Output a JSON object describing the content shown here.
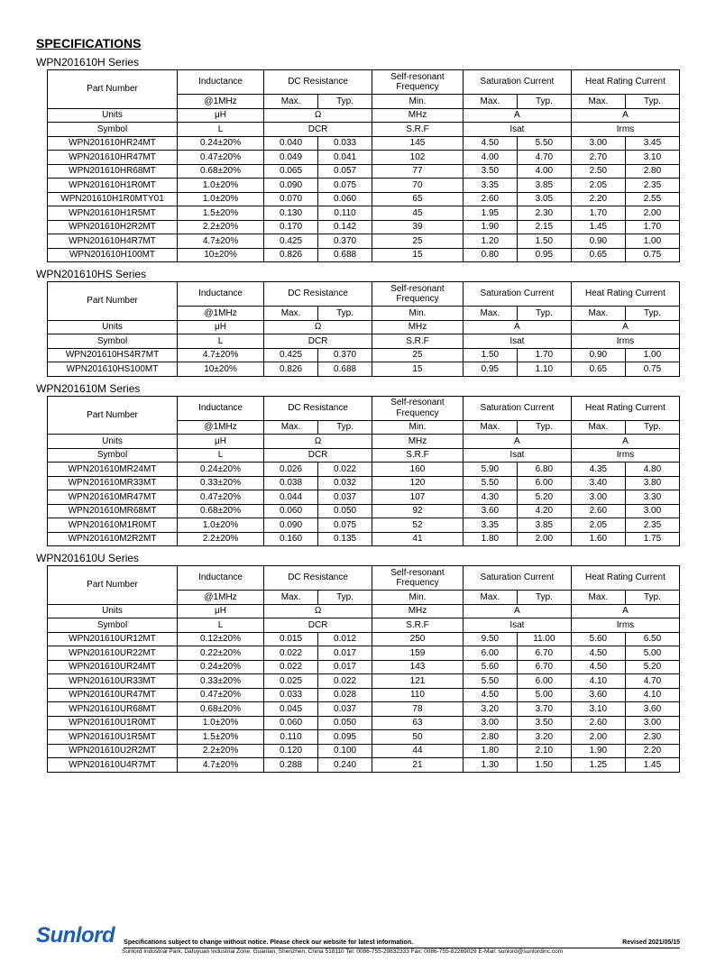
{
  "title": "SPECIFICATIONS",
  "headers": {
    "part_number": "Part Number",
    "inductance": "Inductance",
    "dc_res": "DC Resistance",
    "srf": "Self-resonant Frequency",
    "sat": "Saturation Current",
    "heat": "Heat Rating Current",
    "at1mhz": "@1MHz",
    "max": "Max.",
    "typ": "Typ.",
    "min": "Min.",
    "units": "Units",
    "uh": "μH",
    "ohm": "Ω",
    "mhz": "MHz",
    "a": "A",
    "symbol": "Symbol",
    "l": "L",
    "dcr": "DCR",
    "srf_sym": "S.R.F",
    "isat": "Isat",
    "irms": "Irms"
  },
  "series": [
    {
      "title": "WPN201610H Series",
      "rows": [
        [
          "WPN201610HR24MT",
          "0.24±20%",
          "0.040",
          "0.033",
          "145",
          "4.50",
          "5.50",
          "3.00",
          "3.45"
        ],
        [
          "WPN201610HR47MT",
          "0.47±20%",
          "0.049",
          "0.041",
          "102",
          "4.00",
          "4.70",
          "2.70",
          "3.10"
        ],
        [
          "WPN201610HR68MT",
          "0.68±20%",
          "0.065",
          "0.057",
          "77",
          "3.50",
          "4.00",
          "2.50",
          "2.80"
        ],
        [
          "WPN201610H1R0MT",
          "1.0±20%",
          "0.090",
          "0.075",
          "70",
          "3.35",
          "3.85",
          "2.05",
          "2.35"
        ],
        [
          "WPN201610H1R0MTY01",
          "1.0±20%",
          "0.070",
          "0.060",
          "65",
          "2.60",
          "3.05",
          "2.20",
          "2.55"
        ],
        [
          "WPN201610H1R5MT",
          "1.5±20%",
          "0.130",
          "0.110",
          "45",
          "1.95",
          "2.30",
          "1.70",
          "2.00"
        ],
        [
          "WPN201610H2R2MT",
          "2.2±20%",
          "0.170",
          "0.142",
          "39",
          "1.90",
          "2.15",
          "1.45",
          "1.70"
        ],
        [
          "WPN201610H4R7MT",
          "4.7±20%",
          "0.425",
          "0.370",
          "25",
          "1.20",
          "1.50",
          "0.90",
          "1.00"
        ],
        [
          "WPN201610H100MT",
          "10±20%",
          "0.826",
          "0.688",
          "15",
          "0.80",
          "0.95",
          "0.65",
          "0.75"
        ]
      ]
    },
    {
      "title": "WPN201610HS Series",
      "rows": [
        [
          "WPN201610HS4R7MT",
          "4.7±20%",
          "0.425",
          "0.370",
          "25",
          "1.50",
          "1.70",
          "0.90",
          "1.00"
        ],
        [
          "WPN201610HS100MT",
          "10±20%",
          "0.826",
          "0.688",
          "15",
          "0.95",
          "1.10",
          "0.65",
          "0.75"
        ]
      ]
    },
    {
      "title": "WPN201610M Series",
      "rows": [
        [
          "WPN201610MR24MT",
          "0.24±20%",
          "0.026",
          "0.022",
          "160",
          "5.90",
          "6.80",
          "4.35",
          "4.80"
        ],
        [
          "WPN201610MR33MT",
          "0.33±20%",
          "0.038",
          "0.032",
          "120",
          "5.50",
          "6.00",
          "3.40",
          "3.80"
        ],
        [
          "WPN201610MR47MT",
          "0.47±20%",
          "0.044",
          "0.037",
          "107",
          "4.30",
          "5.20",
          "3.00",
          "3.30"
        ],
        [
          "WPN201610MR68MT",
          "0.68±20%",
          "0.060",
          "0.050",
          "92",
          "3.60",
          "4.20",
          "2.60",
          "3.00"
        ],
        [
          "WPN201610M1R0MT",
          "1.0±20%",
          "0.090",
          "0.075",
          "52",
          "3.35",
          "3.85",
          "2.05",
          "2.35"
        ],
        [
          "WPN201610M2R2MT",
          "2.2±20%",
          "0.160",
          "0.135",
          "41",
          "1.80",
          "2.00",
          "1.60",
          "1.75"
        ]
      ]
    },
    {
      "title": "WPN201610U Series",
      "rows": [
        [
          "WPN201610UR12MT",
          "0.12±20%",
          "0.015",
          "0.012",
          "250",
          "9.50",
          "11.00",
          "5.60",
          "6.50"
        ],
        [
          "WPN201610UR22MT",
          "0.22±20%",
          "0.022",
          "0.017",
          "159",
          "6.00",
          "6.70",
          "4.50",
          "5.00"
        ],
        [
          "WPN201610UR24MT",
          "0.24±20%",
          "0.022",
          "0.017",
          "143",
          "5.60",
          "6.70",
          "4.50",
          "5.20"
        ],
        [
          "WPN201610UR33MT",
          "0.33±20%",
          "0.025",
          "0.022",
          "121",
          "5.50",
          "6.00",
          "4.10",
          "4.70"
        ],
        [
          "WPN201610UR47MT",
          "0.47±20%",
          "0.033",
          "0.028",
          "110",
          "4.50",
          "5.00",
          "3.60",
          "4.10"
        ],
        [
          "WPN201610UR68MT",
          "0.68±20%",
          "0.045",
          "0.037",
          "78",
          "3.20",
          "3.70",
          "3.10",
          "3.60"
        ],
        [
          "WPN201610U1R0MT",
          "1.0±20%",
          "0.060",
          "0.050",
          "63",
          "3.00",
          "3.50",
          "2.60",
          "3.00"
        ],
        [
          "WPN201610U1R5MT",
          "1.5±20%",
          "0.110",
          "0.095",
          "50",
          "2.80",
          "3.20",
          "2.00",
          "2.30"
        ],
        [
          "WPN201610U2R2MT",
          "2.2±20%",
          "0.120",
          "0.100",
          "44",
          "1.80",
          "2.10",
          "1.90",
          "2.20"
        ],
        [
          "WPN201610U4R7MT",
          "4.7±20%",
          "0.288",
          "0.240",
          "21",
          "1.30",
          "1.50",
          "1.25",
          "1.45"
        ]
      ]
    }
  ],
  "footer": {
    "brand": "Sunlord",
    "notice": "Specifications subject to change without notice. Please check our website for latest information.",
    "revised": "Revised 2021/05/15",
    "address": "Sunlord Industrial Park, Dafuyuan Industrial Zone, Guanlan, Shenzhen, China 518110 Tel: 0086-755-29832333 Fax: 0086-755-82269029 E-Mail: sunlord@sunlordinc.com"
  }
}
